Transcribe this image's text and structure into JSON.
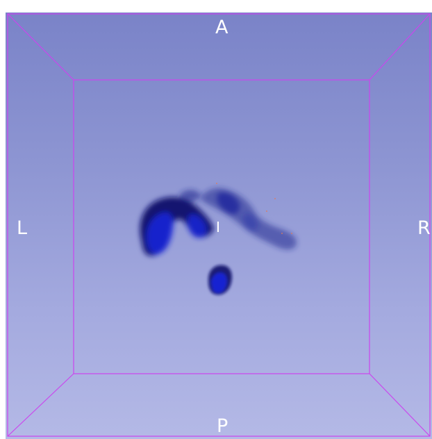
{
  "view": {
    "orientation": {
      "anterior": "A",
      "posterior": "P",
      "left": "L",
      "right": "R",
      "inferior": "I"
    },
    "background_top": "#7a83c8",
    "background_bottom": "#b4b9e6",
    "box_color": "#cc44ee",
    "volume_color": "#1a22d6",
    "volume_dark": "#0a0f6a"
  }
}
